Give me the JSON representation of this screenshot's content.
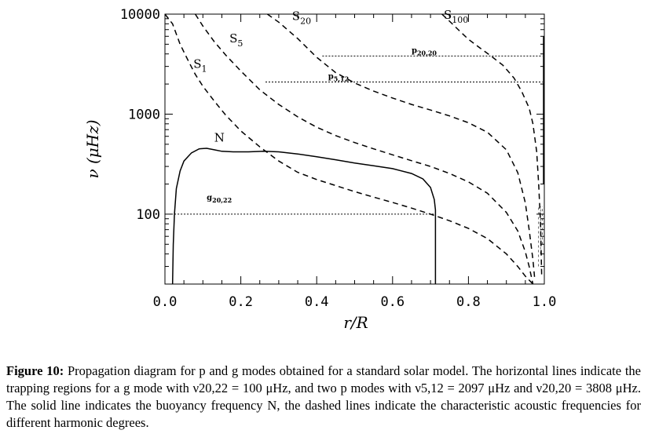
{
  "chart_data": {
    "type": "line",
    "xlabel": "r/R",
    "ylabel": "ν (μHz)",
    "xlim": [
      0.0,
      1.0
    ],
    "ylim": [
      20,
      10000
    ],
    "yscale": "log",
    "xticks": [
      0.0,
      0.2,
      0.4,
      0.6,
      0.8,
      1.0
    ],
    "xtick_labels": [
      "0.0",
      "0.2",
      "0.4",
      "0.6",
      "0.8",
      "1.0"
    ],
    "yticks": [
      100,
      1000,
      10000
    ],
    "ytick_labels": [
      "100",
      "1000",
      "10000"
    ],
    "grid": false,
    "series": [
      {
        "name": "N",
        "style": "solid",
        "color": "#000000",
        "x": [
          0.02,
          0.022,
          0.025,
          0.03,
          0.04,
          0.05,
          0.07,
          0.09,
          0.11,
          0.13,
          0.15,
          0.18,
          0.22,
          0.26,
          0.3,
          0.35,
          0.4,
          0.45,
          0.5,
          0.55,
          0.6,
          0.65,
          0.68,
          0.7,
          0.71,
          0.713,
          0.713
        ],
        "y": [
          20,
          50,
          100,
          180,
          270,
          340,
          410,
          450,
          455,
          440,
          425,
          420,
          420,
          425,
          420,
          400,
          375,
          350,
          325,
          305,
          285,
          255,
          225,
          185,
          140,
          110,
          20
        ]
      },
      {
        "name": "S1",
        "style": "dashed",
        "color": "#000000",
        "x": [
          0.0,
          0.02,
          0.04,
          0.06,
          0.08,
          0.1,
          0.13,
          0.16,
          0.2,
          0.25,
          0.3,
          0.35,
          0.4,
          0.45,
          0.5,
          0.55,
          0.6,
          0.65,
          0.7,
          0.75,
          0.8,
          0.85,
          0.9,
          0.93,
          0.95,
          0.97
        ],
        "y": [
          10000,
          8000,
          5000,
          3500,
          2500,
          1900,
          1350,
          980,
          680,
          470,
          340,
          262,
          222,
          193,
          168,
          148,
          131,
          115,
          100,
          86,
          72,
          57,
          40,
          30,
          24,
          20
        ]
      },
      {
        "name": "S5",
        "style": "dashed",
        "color": "#000000",
        "x": [
          0.08,
          0.1,
          0.13,
          0.16,
          0.2,
          0.25,
          0.3,
          0.35,
          0.4,
          0.45,
          0.5,
          0.55,
          0.6,
          0.65,
          0.7,
          0.75,
          0.8,
          0.85,
          0.9,
          0.93,
          0.95,
          0.96,
          0.97
        ],
        "y": [
          10000,
          7600,
          5300,
          3900,
          2700,
          1750,
          1250,
          940,
          740,
          610,
          520,
          450,
          392,
          342,
          300,
          255,
          210,
          162,
          104,
          68,
          42,
          30,
          20
        ]
      },
      {
        "name": "S20",
        "style": "dashed",
        "color": "#000000",
        "x": [
          0.27,
          0.3,
          0.35,
          0.4,
          0.45,
          0.5,
          0.55,
          0.6,
          0.65,
          0.7,
          0.75,
          0.8,
          0.85,
          0.9,
          0.93,
          0.95,
          0.96,
          0.97,
          0.975
        ],
        "y": [
          10000,
          8300,
          5700,
          3700,
          2600,
          2050,
          1700,
          1450,
          1250,
          1100,
          960,
          820,
          660,
          440,
          260,
          130,
          70,
          35,
          22
        ]
      },
      {
        "name": "S100",
        "style": "dashed",
        "color": "#000000",
        "x": [
          0.73,
          0.75,
          0.78,
          0.8,
          0.83,
          0.86,
          0.89,
          0.92,
          0.94,
          0.96,
          0.97,
          0.98,
          0.985,
          0.99,
          0.993
        ],
        "y": [
          10000,
          8500,
          6600,
          5600,
          4600,
          3800,
          3100,
          2300,
          1700,
          1150,
          800,
          420,
          200,
          80,
          25
        ]
      },
      {
        "name": "g20,22",
        "style": "dotted",
        "color": "#000000",
        "x": [
          0.025,
          0.713
        ],
        "y": [
          100,
          100
        ]
      },
      {
        "name": "p5,12",
        "style": "dotted",
        "color": "#000000",
        "x": [
          0.265,
          0.995
        ],
        "y": [
          2097,
          2097
        ]
      },
      {
        "name": "p20,20",
        "style": "dotted",
        "color": "#000000",
        "x": [
          0.415,
          0.995
        ],
        "y": [
          3808,
          3808
        ]
      },
      {
        "name": "surface",
        "style": "solid",
        "color": "#000000",
        "x": [
          0.998,
          0.998
        ],
        "y": [
          200,
          6000
        ]
      }
    ],
    "annotations": [
      {
        "text": "N",
        "x": 0.13,
        "y": 530
      },
      {
        "base": "S",
        "sub": "1",
        "x": 0.075,
        "y": 2900
      },
      {
        "base": "S",
        "sub": "5",
        "x": 0.17,
        "y": 5200
      },
      {
        "base": "S",
        "sub": "20",
        "x": 0.335,
        "y": 8700
      },
      {
        "base": "S",
        "sub": "100",
        "x": 0.735,
        "y": 9000
      },
      {
        "base": "p",
        "sub": "20,20",
        "x": 0.65,
        "y": 4100
      },
      {
        "base": "p",
        "sub": "5,12",
        "x": 0.43,
        "y": 2260
      },
      {
        "base": "g",
        "sub": "20,22",
        "x": 0.11,
        "y": 138
      }
    ]
  },
  "caption": {
    "title": "Figure 10:",
    "text": "Propagation diagram for p and g modes obtained for a standard solar model. The horizontal lines indicate the trapping regions for a g mode with ν20,22 = 100 μHz, and two p modes with ν5,12 = 2097 μHz and ν20,20 = 3808 μHz. The solid line indicates the buoyancy frequency N, the dashed lines indicate the characteristic acoustic frequencies for different harmonic degrees."
  }
}
